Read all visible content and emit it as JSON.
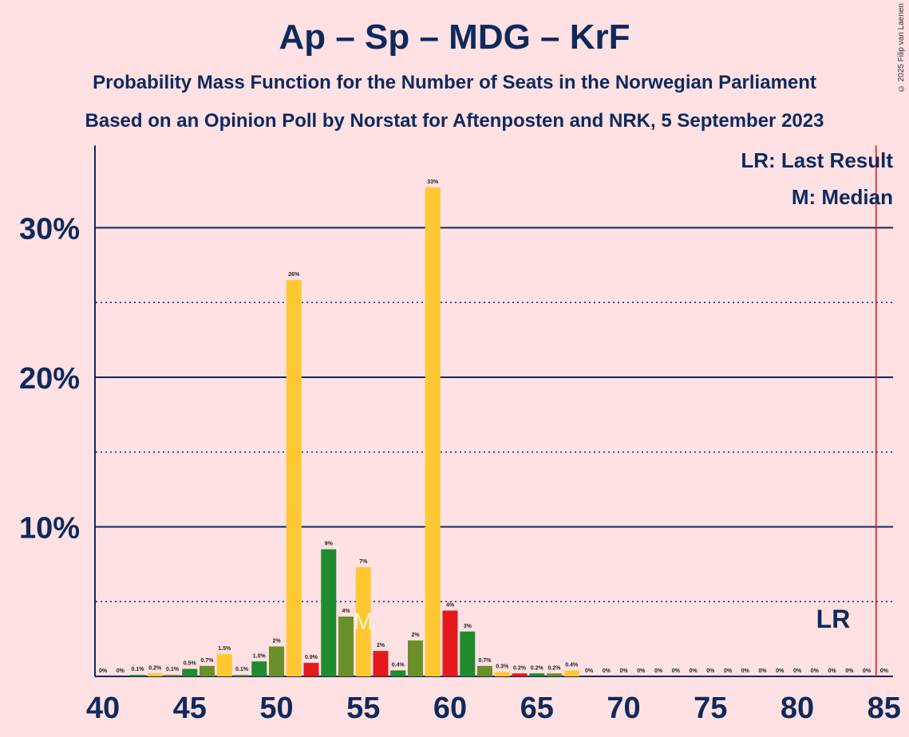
{
  "title": "Ap – Sp – MDG – KrF",
  "subtitle1": "Probability Mass Function for the Number of Seats in the Norwegian Parliament",
  "subtitle2": "Based on an Opinion Poll by Norstat for Aftenposten and NRK, 5 September 2023",
  "copyright": "© 2025 Filip van Laenen",
  "legend": {
    "lr": "LR: Last Result",
    "m": "M: Median"
  },
  "colors": {
    "yellow": "#FFC832",
    "green": "#1F8A2E",
    "olive": "#6B8F2A",
    "red": "#E3191E",
    "navy": "#0E2A5C",
    "background": "#FFE0E3"
  },
  "chart_data": {
    "type": "bar",
    "x": [
      40,
      41,
      42,
      43,
      44,
      45,
      46,
      47,
      48,
      49,
      50,
      51,
      52,
      53,
      54,
      55,
      56,
      57,
      58,
      59,
      60,
      61,
      62,
      63,
      64,
      65,
      66,
      67,
      68,
      69,
      70,
      71,
      72,
      73,
      74,
      75,
      76,
      77,
      78,
      79,
      80,
      81,
      82,
      83,
      84,
      85
    ],
    "values": [
      0,
      0,
      0.1,
      0.2,
      0.1,
      0.5,
      0.7,
      1.5,
      0.1,
      1.0,
      2,
      26.5,
      0.9,
      8.5,
      4,
      7.3,
      1.7,
      0.4,
      2.4,
      32.7,
      4.4,
      3,
      0.7,
      0.3,
      0.2,
      0.2,
      0.2,
      0.4,
      0,
      0,
      0,
      0,
      0,
      0,
      0,
      0,
      0,
      0,
      0,
      0,
      0,
      0,
      0,
      0,
      0,
      0
    ],
    "labels": [
      "0%",
      "0%",
      "0.1%",
      "0.2%",
      "0.1%",
      "0.5%",
      "0.7%",
      "1.5%",
      "0.1%",
      "1.0%",
      "2%",
      "26%",
      "0.9%",
      "9%",
      "4%",
      "7%",
      "2%",
      "0.4%",
      "2%",
      "33%",
      "4%",
      "3%",
      "0.7%",
      "0.3%",
      "0.2%",
      "0.2%",
      "0.2%",
      "0.4%",
      "0%",
      "0%",
      "0%",
      "0%",
      "0%",
      "0%",
      "0%",
      "0%",
      "0%",
      "0%",
      "0%",
      "0%",
      "0%",
      "0%",
      "0%",
      "0%",
      "0%",
      "0%"
    ],
    "bar_colors": [
      "yellow",
      "yellow",
      "green",
      "yellow",
      "olive",
      "green",
      "olive",
      "yellow",
      "olive",
      "green",
      "olive",
      "yellow",
      "red",
      "green",
      "olive",
      "yellow",
      "red",
      "green",
      "olive",
      "yellow",
      "red",
      "green",
      "olive",
      "yellow",
      "red",
      "green",
      "olive",
      "yellow",
      "yellow",
      "yellow",
      "yellow",
      "yellow",
      "yellow",
      "yellow",
      "yellow",
      "yellow",
      "yellow",
      "yellow",
      "yellow",
      "yellow",
      "yellow",
      "yellow",
      "yellow",
      "yellow",
      "yellow",
      "yellow"
    ],
    "ylim": [
      0,
      35.5
    ],
    "y_major_ticks": [
      10,
      20,
      30
    ],
    "y_major_labels": [
      "10%",
      "20%",
      "30%"
    ],
    "y_minor_ticks": [
      5,
      15,
      25
    ],
    "x_ticks": [
      40,
      45,
      50,
      55,
      60,
      65,
      70,
      75,
      80,
      85
    ],
    "x_tick_labels": [
      "40",
      "45",
      "50",
      "55",
      "60",
      "65",
      "70",
      "75",
      "80",
      "85"
    ],
    "median": 55,
    "median_marker": "M",
    "last_result": 85,
    "last_result_label": "LR"
  }
}
